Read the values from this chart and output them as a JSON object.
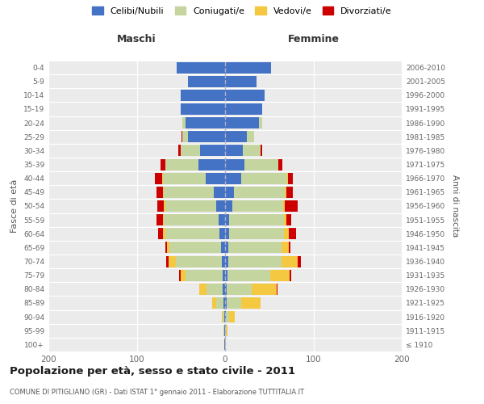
{
  "age_groups": [
    "100+",
    "95-99",
    "90-94",
    "85-89",
    "80-84",
    "75-79",
    "70-74",
    "65-69",
    "60-64",
    "55-59",
    "50-54",
    "45-49",
    "40-44",
    "35-39",
    "30-34",
    "25-29",
    "20-24",
    "15-19",
    "10-14",
    "5-9",
    "0-4"
  ],
  "birth_years": [
    "≤ 1910",
    "1911-1915",
    "1916-1920",
    "1921-1925",
    "1926-1930",
    "1931-1935",
    "1936-1940",
    "1941-1945",
    "1946-1950",
    "1951-1955",
    "1956-1960",
    "1961-1965",
    "1966-1970",
    "1971-1975",
    "1976-1980",
    "1981-1985",
    "1986-1990",
    "1991-1995",
    "1996-2000",
    "2001-2005",
    "2006-2010"
  ],
  "maschi": {
    "celibe": [
      1,
      1,
      1,
      2,
      3,
      3,
      4,
      5,
      6,
      7,
      10,
      13,
      22,
      30,
      28,
      42,
      45,
      50,
      50,
      42,
      55
    ],
    "coniugato": [
      0,
      1,
      2,
      8,
      18,
      42,
      52,
      58,
      62,
      62,
      58,
      56,
      48,
      38,
      22,
      6,
      3,
      0,
      0,
      0,
      0
    ],
    "vedovo": [
      0,
      0,
      1,
      5,
      8,
      5,
      8,
      3,
      2,
      1,
      1,
      1,
      1,
      0,
      0,
      0,
      0,
      0,
      0,
      0,
      0
    ],
    "divorziato": [
      0,
      0,
      0,
      0,
      0,
      2,
      3,
      2,
      6,
      8,
      8,
      8,
      8,
      5,
      3,
      1,
      0,
      0,
      0,
      0,
      0
    ]
  },
  "femmine": {
    "nubile": [
      0,
      0,
      1,
      2,
      2,
      3,
      4,
      4,
      5,
      5,
      8,
      10,
      18,
      22,
      20,
      25,
      38,
      42,
      45,
      36,
      52
    ],
    "coniugata": [
      0,
      1,
      4,
      16,
      28,
      48,
      60,
      60,
      62,
      62,
      58,
      58,
      52,
      38,
      20,
      8,
      4,
      0,
      0,
      0,
      0
    ],
    "vedova": [
      1,
      2,
      6,
      22,
      28,
      22,
      18,
      8,
      5,
      2,
      2,
      1,
      1,
      0,
      0,
      0,
      0,
      0,
      0,
      0,
      0
    ],
    "divorziata": [
      0,
      0,
      0,
      0,
      1,
      2,
      4,
      2,
      8,
      6,
      14,
      8,
      6,
      5,
      2,
      0,
      0,
      0,
      0,
      0,
      0
    ]
  },
  "colors": {
    "celibe": "#4472C4",
    "coniugato": "#C5D5A0",
    "vedovo": "#F5C842",
    "divorziato": "#CC0000"
  },
  "title": "Popolazione per età, sesso e stato civile - 2011",
  "subtitle": "COMUNE DI PITIGLIANO (GR) - Dati ISTAT 1° gennaio 2011 - Elaborazione TUTTITALIA.IT",
  "xlabel_maschi": "Maschi",
  "xlabel_femmine": "Femmine",
  "ylabel_left": "Fasce di età",
  "ylabel_right": "Anni di nascita",
  "xlim": 200,
  "legend_labels": [
    "Celibi/Nubili",
    "Coniugati/e",
    "Vedovi/e",
    "Divorziati/e"
  ],
  "background_color": "#FFFFFF",
  "plot_bg_color": "#EBEBEB"
}
